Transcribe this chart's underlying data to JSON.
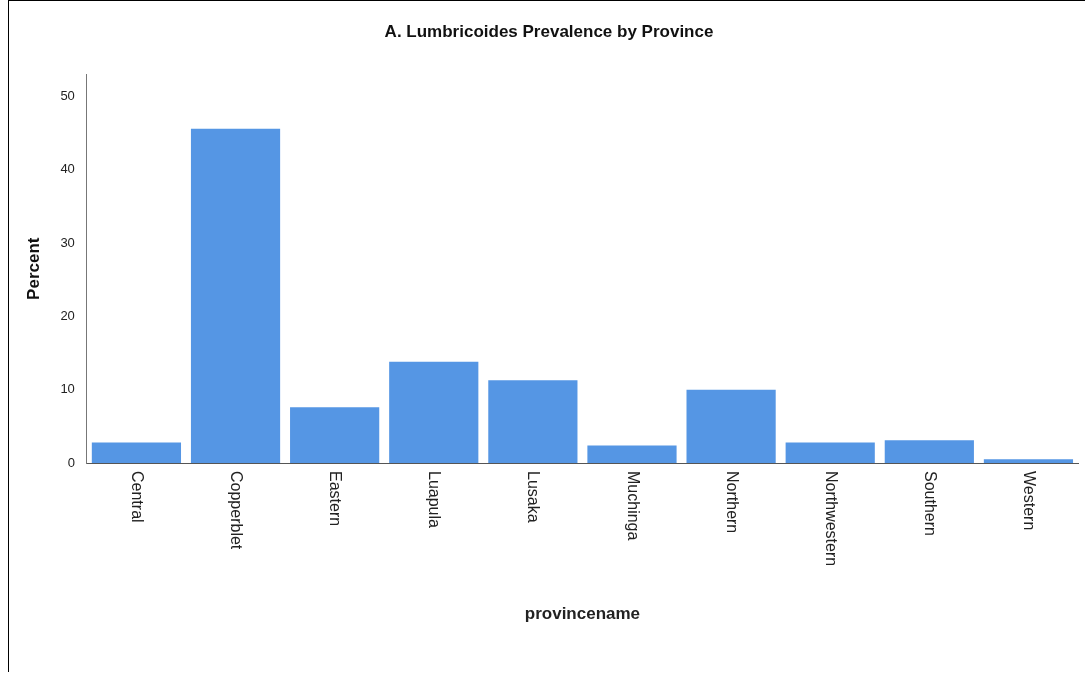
{
  "chart_data": {
    "type": "bar",
    "title": "A. Lumbricoides Prevalence by Province",
    "xlabel": "provincename",
    "ylabel": "Percent",
    "categories": [
      "Central",
      "Copperblet",
      "Eastern",
      "Luapula",
      "Lusaka",
      "Muchinga",
      "Northern",
      "Northwestern",
      "Southern",
      "Western"
    ],
    "values": [
      2.8,
      45.6,
      7.6,
      13.8,
      11.3,
      2.4,
      10.0,
      2.8,
      3.1,
      0.5
    ],
    "color": "#5596e4",
    "ylim": [
      0,
      53
    ],
    "yticks": [
      0,
      10,
      20,
      30,
      40,
      50
    ],
    "grid": false,
    "legend": false
  }
}
